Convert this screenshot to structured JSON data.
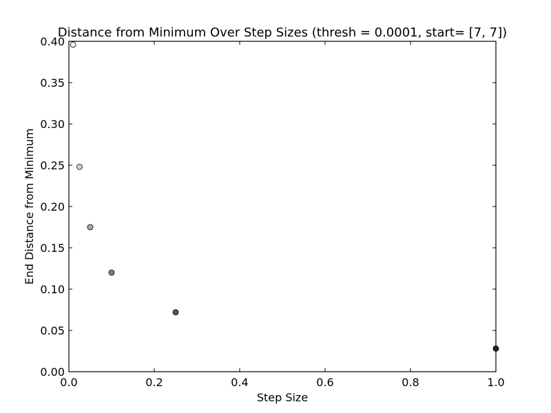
{
  "chart_data": {
    "type": "scatter",
    "title": "Distance from Minimum Over Step Sizes (thresh = 0.0001, start= [7, 7])",
    "xlabel": "Step Size",
    "ylabel": "End Distance from Minimum",
    "xlim": [
      0.0,
      1.0
    ],
    "ylim": [
      0.0,
      0.4
    ],
    "grid": false,
    "x_ticks": [
      "0.0",
      "0.2",
      "0.4",
      "0.6",
      "0.8",
      "1.0"
    ],
    "y_ticks": [
      "0.00",
      "0.05",
      "0.10",
      "0.15",
      "0.20",
      "0.25",
      "0.30",
      "0.35",
      "0.40"
    ],
    "points": [
      {
        "x": 0.01,
        "y": 0.396,
        "color": "#f2f2f2"
      },
      {
        "x": 0.025,
        "y": 0.248,
        "color": "#d0d0d0"
      },
      {
        "x": 0.05,
        "y": 0.175,
        "color": "#a8a8a8"
      },
      {
        "x": 0.1,
        "y": 0.12,
        "color": "#7f7f7f"
      },
      {
        "x": 0.25,
        "y": 0.072,
        "color": "#555555"
      },
      {
        "x": 1.0,
        "y": 0.028,
        "color": "#222222"
      }
    ]
  }
}
